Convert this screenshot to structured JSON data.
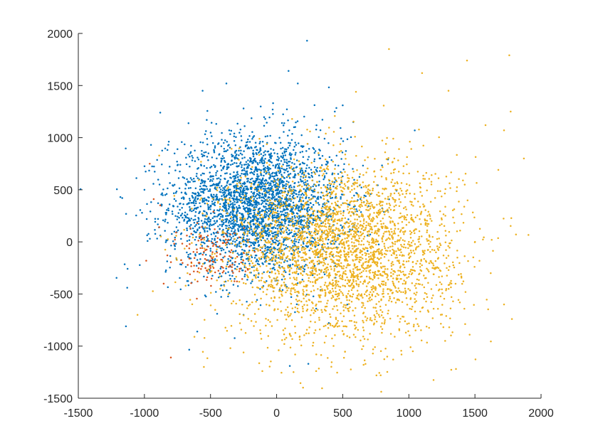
{
  "chart_data": {
    "type": "scatter",
    "title": "",
    "xlabel": "",
    "ylabel": "",
    "xlim": [
      -1500,
      2000
    ],
    "ylim": [
      -1500,
      2000
    ],
    "xticks": [
      -1500,
      -1000,
      -500,
      0,
      500,
      1000,
      1500,
      2000
    ],
    "yticks": [
      -1500,
      -1000,
      -500,
      0,
      500,
      1000,
      1500,
      2000
    ],
    "xtick_labels": [
      "-1500",
      "-1000",
      "-500",
      "0",
      "500",
      "1000",
      "1500",
      "2000"
    ],
    "ytick_labels": [
      "-1500",
      "-1000",
      "-500",
      "0",
      "500",
      "1000",
      "1500",
      "2000"
    ],
    "grid": false,
    "legend": "none",
    "series": [
      {
        "color": "#0072BD",
        "count": 3000,
        "center": [
          -150,
          350
        ],
        "spread": [
          330,
          330
        ],
        "sample_points": [
          [
            -1140,
            -810
          ],
          [
            -1130,
            -440
          ],
          [
            -1000,
            500
          ],
          [
            -950,
            930
          ],
          [
            -880,
            1240
          ],
          [
            -560,
            1450
          ],
          [
            -380,
            1520
          ],
          [
            -250,
            1280
          ],
          [
            -30,
            1270
          ],
          [
            90,
            1640
          ],
          [
            160,
            1520
          ],
          [
            230,
            1930
          ],
          [
            440,
            1250
          ],
          [
            500,
            1310
          ],
          [
            580,
            1150
          ],
          [
            -600,
            -860
          ],
          [
            -450,
            -690
          ],
          [
            -250,
            -700
          ],
          [
            100,
            -1190
          ],
          [
            240,
            -1170
          ],
          [
            -200,
            400
          ],
          [
            -100,
            300
          ],
          [
            -300,
            250
          ],
          [
            0,
            500
          ],
          [
            -150,
            600
          ]
        ]
      },
      {
        "color": "#D95319",
        "count": 130,
        "center": [
          -480,
          -130
        ],
        "spread": [
          170,
          150
        ],
        "sample_points": [
          [
            -960,
            750
          ],
          [
            -930,
            410
          ],
          [
            -880,
            350
          ],
          [
            -800,
            -1110
          ],
          [
            -660,
            -160
          ],
          [
            -600,
            180
          ],
          [
            -500,
            -250
          ],
          [
            -450,
            0
          ],
          [
            -400,
            -280
          ],
          [
            -350,
            -100
          ],
          [
            -300,
            -380
          ],
          [
            -420,
            -170
          ],
          [
            -520,
            60
          ],
          [
            -680,
            -40
          ],
          [
            -760,
            90
          ]
        ]
      },
      {
        "color": "#EDB120",
        "count": 3000,
        "center": [
          500,
          -80
        ],
        "spread": [
          430,
          420
        ],
        "sample_points": [
          [
            850,
            1850
          ],
          [
            1760,
            1790
          ],
          [
            1440,
            1740
          ],
          [
            1770,
            1250
          ],
          [
            1870,
            800
          ],
          [
            1720,
            1070
          ],
          [
            1580,
            1120
          ],
          [
            1720,
            -600
          ],
          [
            1780,
            -740
          ],
          [
            1460,
            -890
          ],
          [
            1030,
            -1050
          ],
          [
            300,
            -1080
          ],
          [
            -550,
            -1200
          ],
          [
            -350,
            -1020
          ],
          [
            -450,
            520
          ],
          [
            1100,
            1620
          ],
          [
            600,
            1440
          ],
          [
            1300,
            1450
          ],
          [
            400,
            -400
          ],
          [
            250,
            -200
          ],
          [
            700,
            100
          ],
          [
            900,
            400
          ],
          [
            1000,
            0
          ],
          [
            300,
            -600
          ],
          [
            800,
            -500
          ]
        ]
      }
    ]
  }
}
